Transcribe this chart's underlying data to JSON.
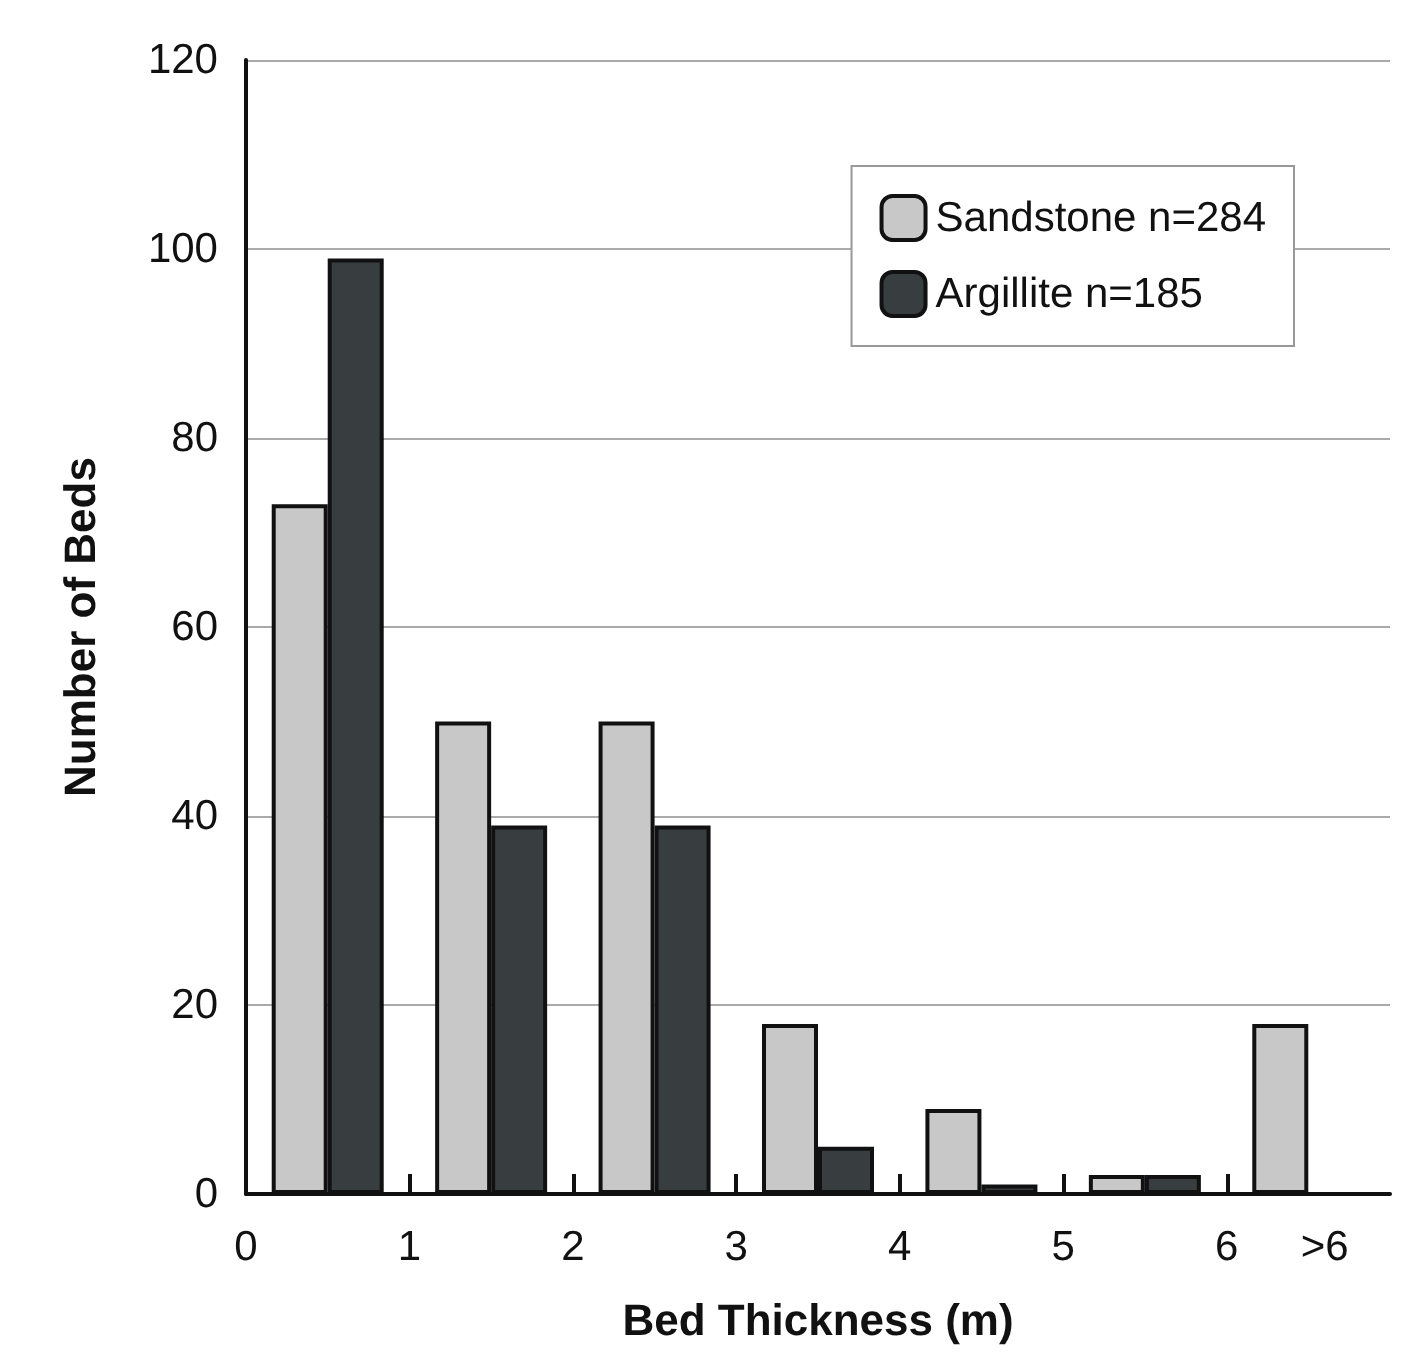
{
  "chart_data": {
    "type": "bar",
    "xlabel": "Bed Thickness (m)",
    "ylabel": "Number of Beds",
    "x": [
      0.5,
      1.5,
      2.5,
      3.5,
      4.5,
      5.5,
      6.5
    ],
    "series": [
      {
        "name": "Sandstone n=284",
        "color": "#c8c8c8",
        "values": [
          73,
          50,
          50,
          18,
          9,
          2,
          18
        ]
      },
      {
        "name": "Argillite n=185",
        "color": "#383d40",
        "values": [
          99,
          39,
          39,
          5,
          1,
          2,
          null
        ]
      }
    ],
    "xlim": [
      0,
      7
    ],
    "xticks": [
      0,
      1,
      2,
      3,
      4,
      5,
      6,
      {
        "value": 6.6,
        "label": ">6"
      }
    ],
    "ylim": [
      0,
      120
    ],
    "yticks": [
      0,
      20,
      40,
      60,
      80,
      100,
      120
    ],
    "grid": "y",
    "legend": "top right"
  }
}
